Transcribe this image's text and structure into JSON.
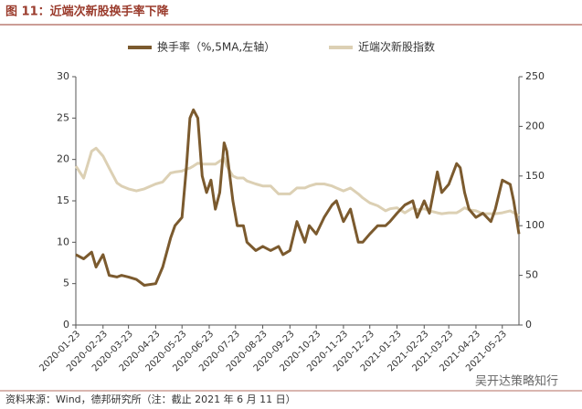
{
  "chart_data": {
    "type": "line",
    "title": "图 11：近端次新股换手率下降",
    "source": "资料来源：Wind，德邦研究所（注：截止 2021 年 6 月 11 日）",
    "watermark": "吴开达策略知行",
    "x": [
      "2020-01-23",
      "2020-02-01",
      "2020-02-10",
      "2020-02-15",
      "2020-02-23",
      "2020-03-01",
      "2020-03-10",
      "2020-03-15",
      "2020-03-23",
      "2020-04-01",
      "2020-04-10",
      "2020-04-23",
      "2020-05-01",
      "2020-05-10",
      "2020-05-15",
      "2020-05-23",
      "2020-05-28",
      "2020-06-01",
      "2020-06-05",
      "2020-06-10",
      "2020-06-15",
      "2020-06-20",
      "2020-06-25",
      "2020-06-30",
      "2020-07-05",
      "2020-07-10",
      "2020-07-13",
      "2020-07-20",
      "2020-07-25",
      "2020-08-01",
      "2020-08-05",
      "2020-08-15",
      "2020-08-23",
      "2020-09-01",
      "2020-09-10",
      "2020-09-15",
      "2020-09-23",
      "2020-10-01",
      "2020-10-10",
      "2020-10-15",
      "2020-10-23",
      "2020-11-01",
      "2020-11-10",
      "2020-11-15",
      "2020-11-23",
      "2020-12-01",
      "2020-12-10",
      "2020-12-15",
      "2020-12-23",
      "2021-01-01",
      "2021-01-10",
      "2021-01-15",
      "2021-01-23",
      "2021-02-01",
      "2021-02-10",
      "2021-02-15",
      "2021-02-23",
      "2021-03-01",
      "2021-03-10",
      "2021-03-15",
      "2021-03-23",
      "2021-04-01",
      "2021-04-05",
      "2021-04-10",
      "2021-04-15",
      "2021-04-23",
      "2021-05-01",
      "2021-05-10",
      "2021-05-15",
      "2021-05-23",
      "2021-06-01",
      "2021-06-05",
      "2021-06-11"
    ],
    "xlim": [
      "2020-01-23",
      "2021-06-11"
    ],
    "xticks": [
      "2020-01-23",
      "2020-02-23",
      "2020-03-23",
      "2020-04-23",
      "2020-05-23",
      "2020-06-23",
      "2020-07-23",
      "2020-08-23",
      "2020-09-23",
      "2020-10-23",
      "2020-11-23",
      "2020-12-23",
      "2021-01-23",
      "2021-02-23",
      "2021-03-23",
      "2021-04-23",
      "2021-05-23"
    ],
    "ylim": [
      0,
      30
    ],
    "yticks": [
      0,
      5,
      10,
      15,
      20,
      25,
      30
    ],
    "y2lim": [
      0,
      250
    ],
    "y2ticks": [
      0,
      50,
      100,
      150,
      200,
      250
    ],
    "legend": "top",
    "series": [
      {
        "name": "换手率（%,5MA,左轴）",
        "color": "#7b5a2e",
        "axis": "y",
        "values": [
          8.5,
          8,
          8.8,
          7,
          8.5,
          6,
          5.8,
          6,
          5.8,
          5.5,
          4.8,
          5,
          7,
          10.5,
          12,
          13,
          19,
          25,
          26,
          25,
          18,
          16,
          17.5,
          14,
          16,
          22,
          21,
          15,
          12,
          12,
          10,
          9,
          9.5,
          9,
          9.5,
          8.5,
          9,
          12.5,
          10,
          12,
          11,
          13,
          14.5,
          15,
          12.5,
          14,
          10,
          10,
          11,
          12,
          12,
          12.5,
          13.5,
          14.5,
          15,
          13,
          15,
          13.5,
          18.5,
          16,
          17,
          19.5,
          19,
          16,
          14,
          13,
          13.5,
          12.5,
          14,
          17.5,
          17,
          15,
          11
        ]
      },
      {
        "name": "近端次新股指数",
        "color": "#dcd0b4",
        "axis": "y2",
        "values": [
          160,
          148,
          175,
          178,
          170,
          158,
          143,
          140,
          137,
          135,
          137,
          142,
          144,
          153,
          154,
          155,
          157,
          158,
          160,
          163,
          162,
          162,
          162,
          162,
          165,
          168,
          160,
          150,
          148,
          148,
          145,
          142,
          140,
          140,
          132,
          132,
          132,
          138,
          138,
          140,
          142,
          142,
          140,
          138,
          135,
          138,
          132,
          128,
          123,
          120,
          115,
          117,
          118,
          113,
          118,
          116,
          117,
          115,
          113,
          112,
          113,
          113,
          115,
          118,
          116,
          115,
          112,
          112,
          112,
          113,
          115,
          113,
          110
        ]
      }
    ]
  }
}
